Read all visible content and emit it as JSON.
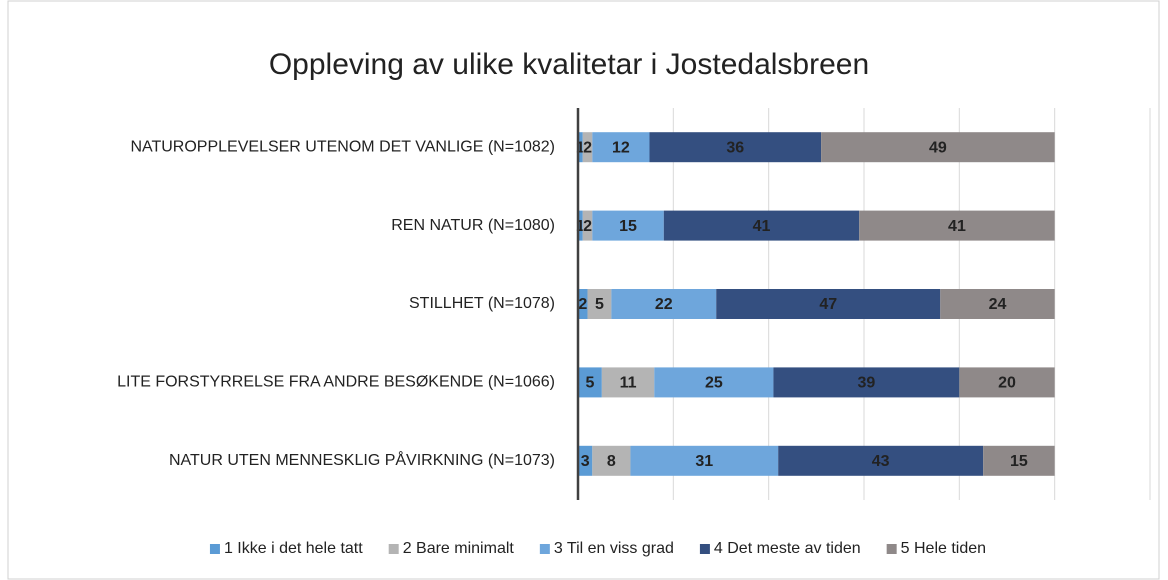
{
  "chart_data": {
    "type": "stacked_barh",
    "title": "Oppleving av ulike kvalitetar i Jostedalsbreen",
    "categories": [
      "NATUROPPLEVELSER UTENOM DET VANLIGE (N=1082)",
      "REN NATUR (N=1080)",
      "STILLHET (N=1078)",
      "LITE FORSTYRRELSE FRA ANDRE BESØKENDE (N=1066)",
      "NATUR UTEN MENNESKLIG PÅVIRKNING (N=1073)"
    ],
    "series": [
      {
        "name": "1 Ikke i det hele tatt",
        "color": "#5b9bd5",
        "values": [
          1,
          1,
          2,
          5,
          3
        ]
      },
      {
        "name": "2 Bare minimalt",
        "color": "#b4b4b4",
        "values": [
          2,
          2,
          5,
          11,
          8
        ]
      },
      {
        "name": "3 Til en viss grad",
        "color": "#6ea6dc",
        "values": [
          12,
          15,
          22,
          25,
          31
        ]
      },
      {
        "name": "4 Det meste av tiden",
        "color": "#344f80",
        "values": [
          36,
          41,
          47,
          39,
          43
        ]
      },
      {
        "name": "5 Hele tiden",
        "color": "#8f8989",
        "values": [
          49,
          41,
          24,
          20,
          15
        ]
      }
    ],
    "xlim": [
      0,
      120
    ],
    "xticks": [
      0,
      20,
      40,
      60,
      80,
      100,
      120
    ],
    "grid": true,
    "tick_labels": false,
    "legend": "bottom"
  }
}
